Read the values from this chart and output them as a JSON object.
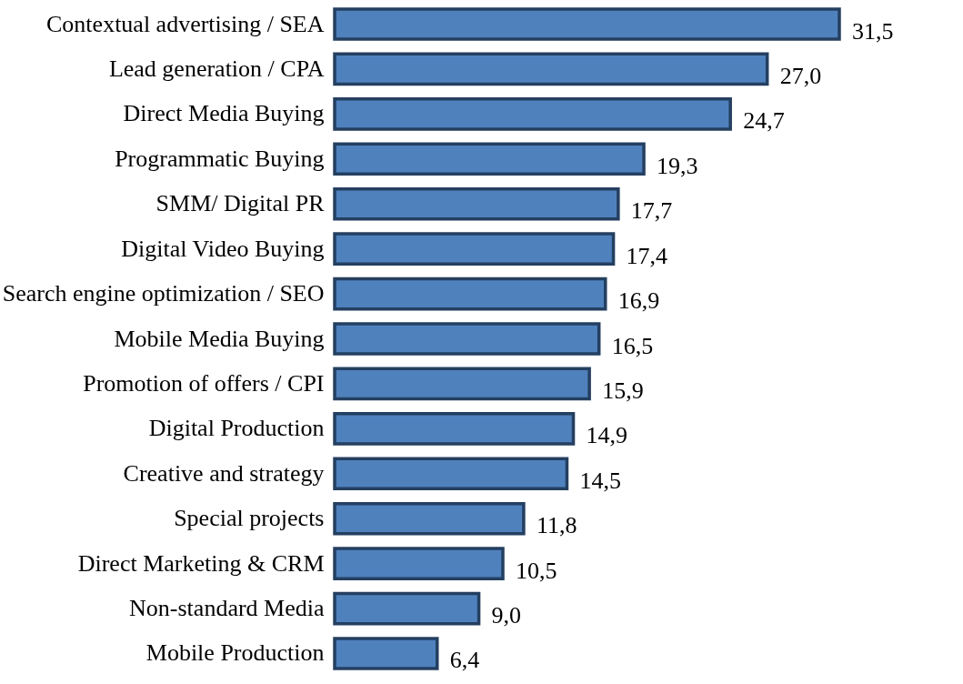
{
  "chart_data": {
    "type": "bar",
    "orientation": "horizontal",
    "categories": [
      "Contextual advertising / SEA",
      "Lead generation / CPA",
      "Direct Media Buying",
      "Programmatic Buying",
      "SMM/ Digital PR",
      "Digital Video Buying",
      "Search engine optimization / SEO",
      "Mobile Media Buying",
      "Promotion of offers / CPI",
      "Digital Production",
      "Creative and strategy",
      "Special projects",
      "Direct Marketing & CRM",
      "Non-standard Media",
      "Mobile Production"
    ],
    "values": [
      31.5,
      27.0,
      24.7,
      19.3,
      17.7,
      17.4,
      16.9,
      16.5,
      15.9,
      14.9,
      14.5,
      11.8,
      10.5,
      9.0,
      6.4
    ],
    "value_labels": [
      "31,5",
      "27,0",
      "24,7",
      "19,3",
      "17,7",
      "17,4",
      "16,9",
      "16,5",
      "15,9",
      "14,9",
      "14,5",
      "11,8",
      "10,5",
      "9,0",
      "6,4"
    ],
    "color": "#4f81bd",
    "grid": false
  }
}
